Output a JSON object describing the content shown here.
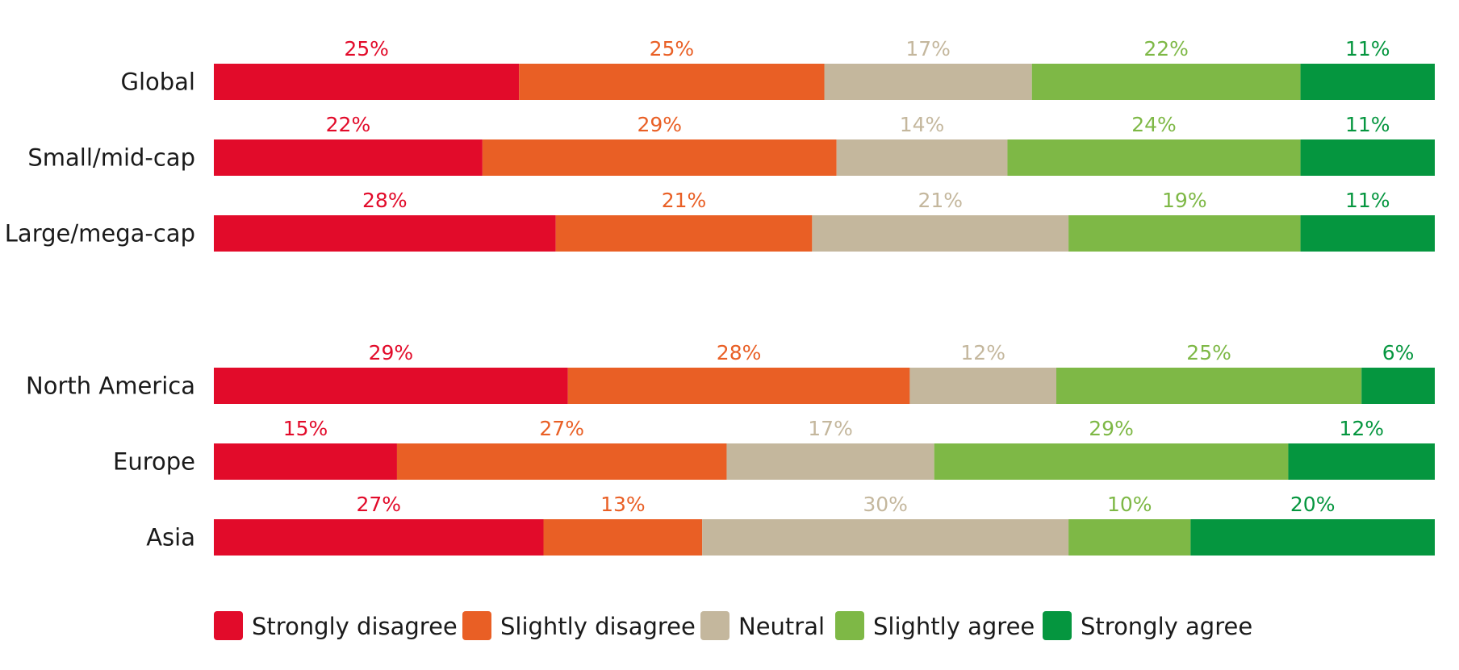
{
  "chart_data": {
    "type": "bar",
    "orientation": "horizontal",
    "stacked": true,
    "percent_stacked": true,
    "title": "",
    "xlabel": "",
    "ylabel": "",
    "xlim": [
      0,
      100
    ],
    "grid": false,
    "legend_position": "bottom",
    "value_format": "{v}%",
    "groups": [
      {
        "categories": [
          "Global",
          "Small/mid-cap",
          "Large/mega-cap"
        ]
      },
      {
        "categories": [
          "North America",
          "Europe",
          "Asia"
        ]
      }
    ],
    "series": [
      {
        "name": "Strongly disagree",
        "color": "#e20b2a",
        "label_color": "#e20b2a",
        "values": [
          25,
          22,
          28,
          29,
          15,
          27
        ]
      },
      {
        "name": "Slightly disagree",
        "color": "#e95f25",
        "label_color": "#e95f25",
        "values": [
          25,
          29,
          21,
          28,
          27,
          13
        ]
      },
      {
        "name": "Neutral",
        "color": "#c4b79d",
        "label_color": "#c4b79d",
        "values": [
          17,
          14,
          21,
          12,
          17,
          30
        ]
      },
      {
        "name": "Slightly agree",
        "color": "#7eb846",
        "label_color": "#7eb846",
        "values": [
          22,
          24,
          19,
          25,
          29,
          10
        ]
      },
      {
        "name": "Strongly agree",
        "color": "#05963f",
        "label_color": "#05963f",
        "values": [
          11,
          11,
          11,
          6,
          12,
          20
        ]
      }
    ]
  }
}
